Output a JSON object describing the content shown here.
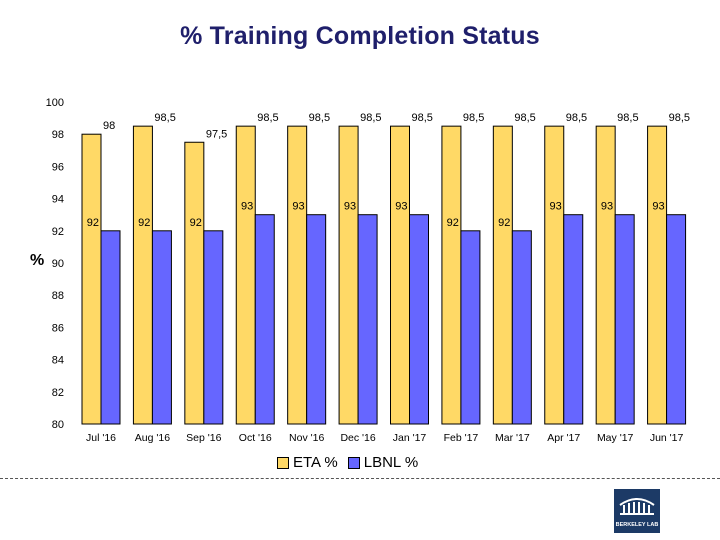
{
  "chart_data": {
    "type": "bar",
    "title": "% Training Completion Status",
    "ylabel": "%",
    "xlabel": "",
    "ylim": [
      80,
      100
    ],
    "yticks": [
      80,
      82,
      84,
      86,
      88,
      90,
      92,
      94,
      96,
      98,
      100
    ],
    "categories": [
      "Jul '16",
      "Aug '16",
      "Sep '16",
      "Oct '16",
      "Nov '16",
      "Dec '16",
      "Jan '17",
      "Feb '17",
      "Mar '17",
      "Apr '17",
      "May '17",
      "Jun '17"
    ],
    "series": [
      {
        "name": "ETA %",
        "color": "#ffd966",
        "values": [
          98,
          98.5,
          97.5,
          98.5,
          98.5,
          98.5,
          98.5,
          98.5,
          98.5,
          98.5,
          98.5,
          98.5
        ],
        "labels": [
          "98",
          "98,5",
          "97,5",
          "98,5",
          "98,5",
          "98,5",
          "98,5",
          "98,5",
          "98,5",
          "98,5",
          "98,5",
          "98,5"
        ]
      },
      {
        "name": "LBNL %",
        "color": "#6666ff",
        "values": [
          92,
          92,
          92,
          93,
          93,
          93,
          93,
          92,
          92,
          93,
          93,
          93
        ],
        "labels": [
          "92",
          "92",
          "92",
          "93",
          "93",
          "93",
          "93",
          "92",
          "92",
          "93",
          "93",
          "93"
        ]
      }
    ],
    "grid": false,
    "legend": "bottom"
  },
  "logo": {
    "icon": "berkeley-lab-logo",
    "text": "BERKELEY LAB"
  }
}
